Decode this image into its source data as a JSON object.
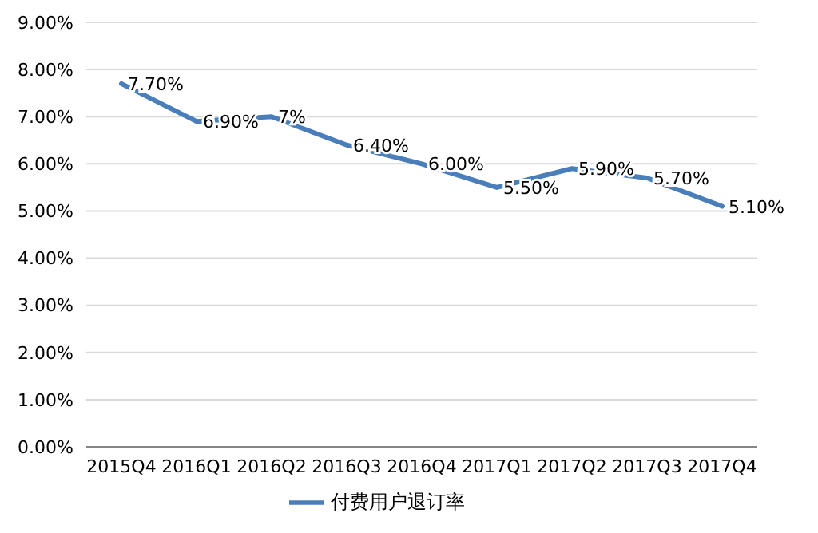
{
  "chart_data": {
    "type": "line",
    "categories": [
      "2015Q4",
      "2016Q1",
      "2016Q2",
      "2016Q3",
      "2016Q4",
      "2017Q1",
      "2017Q2",
      "2017Q3",
      "2017Q4"
    ],
    "series": [
      {
        "name": "付费用户退订率",
        "color": "#4a7ebb",
        "values": [
          7.7,
          6.9,
          7,
          6.4,
          6.0,
          5.5,
          5.9,
          5.7,
          5.1
        ],
        "value_labels": [
          "7.70%",
          "6.90%",
          "7%",
          "6.40%",
          "6.00%",
          "5.50%",
          "5.90%",
          "5.70%",
          "5.10%"
        ]
      }
    ],
    "ylim": [
      0,
      9
    ],
    "yticks": [
      {
        "value": 0,
        "label": "0.00%"
      },
      {
        "value": 1,
        "label": "1.00%"
      },
      {
        "value": 2,
        "label": "2.00%"
      },
      {
        "value": 3,
        "label": "3.00%"
      },
      {
        "value": 4,
        "label": "4.00%"
      },
      {
        "value": 5,
        "label": "5.00%"
      },
      {
        "value": 6,
        "label": "6.00%"
      },
      {
        "value": 7,
        "label": "7.00%"
      },
      {
        "value": 8,
        "label": "8.00%"
      },
      {
        "value": 9,
        "label": "9.00%"
      }
    ],
    "grid": "y",
    "legend": "bottom",
    "marker": "none",
    "line_style": "solid"
  }
}
